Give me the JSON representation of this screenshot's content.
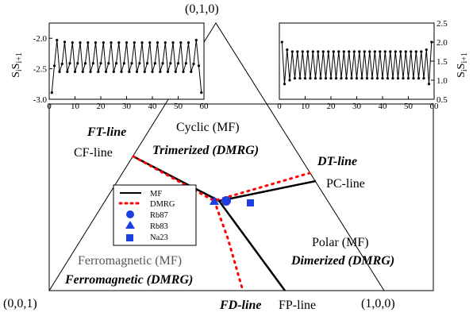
{
  "chart_data": [
    {
      "type": "ternary_phase_diagram",
      "vertices": {
        "top": "(0,1,0)",
        "bottom_left": "(0,0,1)",
        "bottom_right": "(1,0,0)"
      },
      "phase_labels": {
        "cyclic_mf": "Cyclic (MF)",
        "trimerized": "Trimerized (DMRG)",
        "polar_mf": "Polar (MF)",
        "dimerized": "Dimerized (DMRG)",
        "ferro_mf": "Ferromagnetic (MF)",
        "ferro_dmrg": "Ferromagnetic (DMRG)"
      },
      "line_labels": {
        "ft": "FT-line",
        "cf": "CF-line",
        "dt": "DT-line",
        "pc": "PC-line",
        "fd": "FD-line",
        "fp": "FP-line"
      },
      "legend": [
        {
          "label": "MF",
          "marker": "solid-line"
        },
        {
          "label": "DMRG",
          "marker": "dotted-line"
        },
        {
          "label": "Rb87",
          "marker": "circle"
        },
        {
          "label": "Rb83",
          "marker": "triangle"
        },
        {
          "label": "Na23",
          "marker": "square"
        }
      ],
      "colors": {
        "mf": "#000000",
        "dmrg": "#ff0000",
        "points": "#1f3ee0"
      }
    },
    {
      "type": "line",
      "ylabel": "S_iS_i+1",
      "xlim": [
        0,
        60
      ],
      "ylim": [
        -3.0,
        -1.75
      ],
      "xticks": [
        "0",
        "10",
        "20",
        "30",
        "40",
        "50",
        "60"
      ],
      "yticks": [
        "-2.0",
        "-2.5",
        "-3.0"
      ],
      "x": [
        1,
        2,
        3,
        4,
        5,
        6,
        7,
        8,
        9,
        10,
        11,
        12,
        13,
        14,
        15,
        16,
        17,
        18,
        19,
        20,
        21,
        22,
        23,
        24,
        25,
        26,
        27,
        28,
        29,
        30,
        31,
        32,
        33,
        34,
        35,
        36,
        37,
        38,
        39,
        40,
        41,
        42,
        43,
        44,
        45,
        46,
        47,
        48,
        49,
        50,
        51,
        52,
        53,
        54,
        55,
        56,
        57,
        58,
        59
      ],
      "y": [
        -2.89,
        -2.45,
        -2.03,
        -2.55,
        -2.42,
        -2.06,
        -2.55,
        -2.41,
        -2.07,
        -2.55,
        -2.41,
        -2.07,
        -2.55,
        -2.41,
        -2.07,
        -2.55,
        -2.41,
        -2.07,
        -2.55,
        -2.41,
        -2.07,
        -2.55,
        -2.41,
        -2.07,
        -2.55,
        -2.41,
        -2.07,
        -2.55,
        -2.41,
        -2.07,
        -2.55,
        -2.41,
        -2.07,
        -2.55,
        -2.41,
        -2.07,
        -2.55,
        -2.41,
        -2.07,
        -2.55,
        -2.41,
        -2.07,
        -2.55,
        -2.41,
        -2.07,
        -2.55,
        -2.41,
        -2.07,
        -2.55,
        -2.41,
        -2.07,
        -2.55,
        -2.41,
        -2.07,
        -2.55,
        -2.42,
        -2.03,
        -2.45,
        -2.89
      ]
    },
    {
      "type": "line",
      "ylabel": "S_iS_i+1",
      "xlim": [
        0,
        60
      ],
      "ylim": [
        0.5,
        2.5
      ],
      "xticks": [
        "0",
        "10",
        "20",
        "30",
        "40",
        "50",
        "60"
      ],
      "yticks": [
        "0.5",
        "1.0",
        "1.5",
        "2.0",
        "2.5"
      ],
      "x": [
        1,
        2,
        3,
        4,
        5,
        6,
        7,
        8,
        9,
        10,
        11,
        12,
        13,
        14,
        15,
        16,
        17,
        18,
        19,
        20,
        21,
        22,
        23,
        24,
        25,
        26,
        27,
        28,
        29,
        30,
        31,
        32,
        33,
        34,
        35,
        36,
        37,
        38,
        39,
        40,
        41,
        42,
        43,
        44,
        45,
        46,
        47,
        48,
        49,
        50,
        51,
        52,
        53,
        54,
        55,
        56,
        57,
        58,
        59
      ],
      "y": [
        2.0,
        0.9,
        1.8,
        1.0,
        1.75,
        1.05,
        1.75,
        1.05,
        1.75,
        1.05,
        1.75,
        1.05,
        1.75,
        1.05,
        1.75,
        1.05,
        1.75,
        1.05,
        1.75,
        1.05,
        1.75,
        1.05,
        1.75,
        1.05,
        1.75,
        1.05,
        1.75,
        1.05,
        1.75,
        1.05,
        1.75,
        1.05,
        1.75,
        1.05,
        1.75,
        1.05,
        1.75,
        1.05,
        1.75,
        1.05,
        1.75,
        1.05,
        1.75,
        1.05,
        1.75,
        1.05,
        1.75,
        1.05,
        1.75,
        1.05,
        1.75,
        1.05,
        1.75,
        1.05,
        1.75,
        1.05,
        1.8,
        0.9,
        2.0
      ]
    }
  ]
}
